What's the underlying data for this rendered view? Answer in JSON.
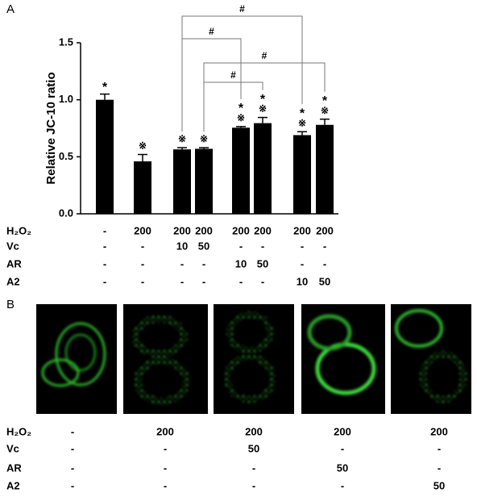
{
  "panel_labels": [
    "A",
    "B"
  ],
  "chart_data": {
    "type": "bar",
    "ylabel": "Relative JC-10 ratio",
    "values": [
      1.0,
      0.46,
      0.565,
      0.57,
      0.755,
      0.795,
      0.69,
      0.78
    ],
    "errors": [
      0.05,
      0.06,
      0.015,
      0.01,
      0.01,
      0.05,
      0.03,
      0.05
    ],
    "color": "#000000",
    "ylim": [
      0,
      1.5
    ],
    "yticks": [
      {
        "value": 0,
        "label": "0.0"
      },
      0.5,
      {
        "value": 1,
        "label": "1.0"
      },
      1.5
    ],
    "annotations": [
      [
        "*"
      ],
      [
        "※"
      ],
      [
        "※"
      ],
      [
        "※"
      ],
      [
        "*",
        "※"
      ],
      [
        "*",
        "※"
      ],
      [
        "*",
        "※"
      ],
      [
        "*",
        "※"
      ]
    ],
    "brackets": [
      "#",
      "#",
      "#",
      "#"
    ],
    "treatments": [
      {
        "name": "H₂O₂",
        "entries": [
          "-",
          "200",
          "200",
          "200",
          "200",
          "200",
          "200",
          "200"
        ]
      },
      {
        "name": "Vc",
        "entries": [
          "-",
          "-",
          "10",
          "50",
          "-",
          "-",
          "-",
          "-"
        ]
      },
      {
        "name": "AR",
        "entries": [
          "-",
          "-",
          "-",
          "-",
          "10",
          "50",
          "-",
          "-"
        ]
      },
      {
        "name": "A2",
        "entries": [
          "-",
          "-",
          "-",
          "-",
          "-",
          "-",
          "10",
          "50"
        ]
      }
    ]
  },
  "images": {
    "treatments": [
      {
        "name": "H₂O₂",
        "entries": [
          "-",
          "200",
          "200",
          "200",
          "200"
        ]
      },
      {
        "name": "Vc",
        "entries": [
          "-",
          "-",
          "50",
          "-",
          "-"
        ]
      },
      {
        "name": "AR",
        "entries": [
          "-",
          "-",
          "-",
          "50",
          "-"
        ]
      },
      {
        "name": "A2",
        "entries": [
          "-",
          "-",
          "-",
          "-",
          "50"
        ]
      }
    ]
  }
}
